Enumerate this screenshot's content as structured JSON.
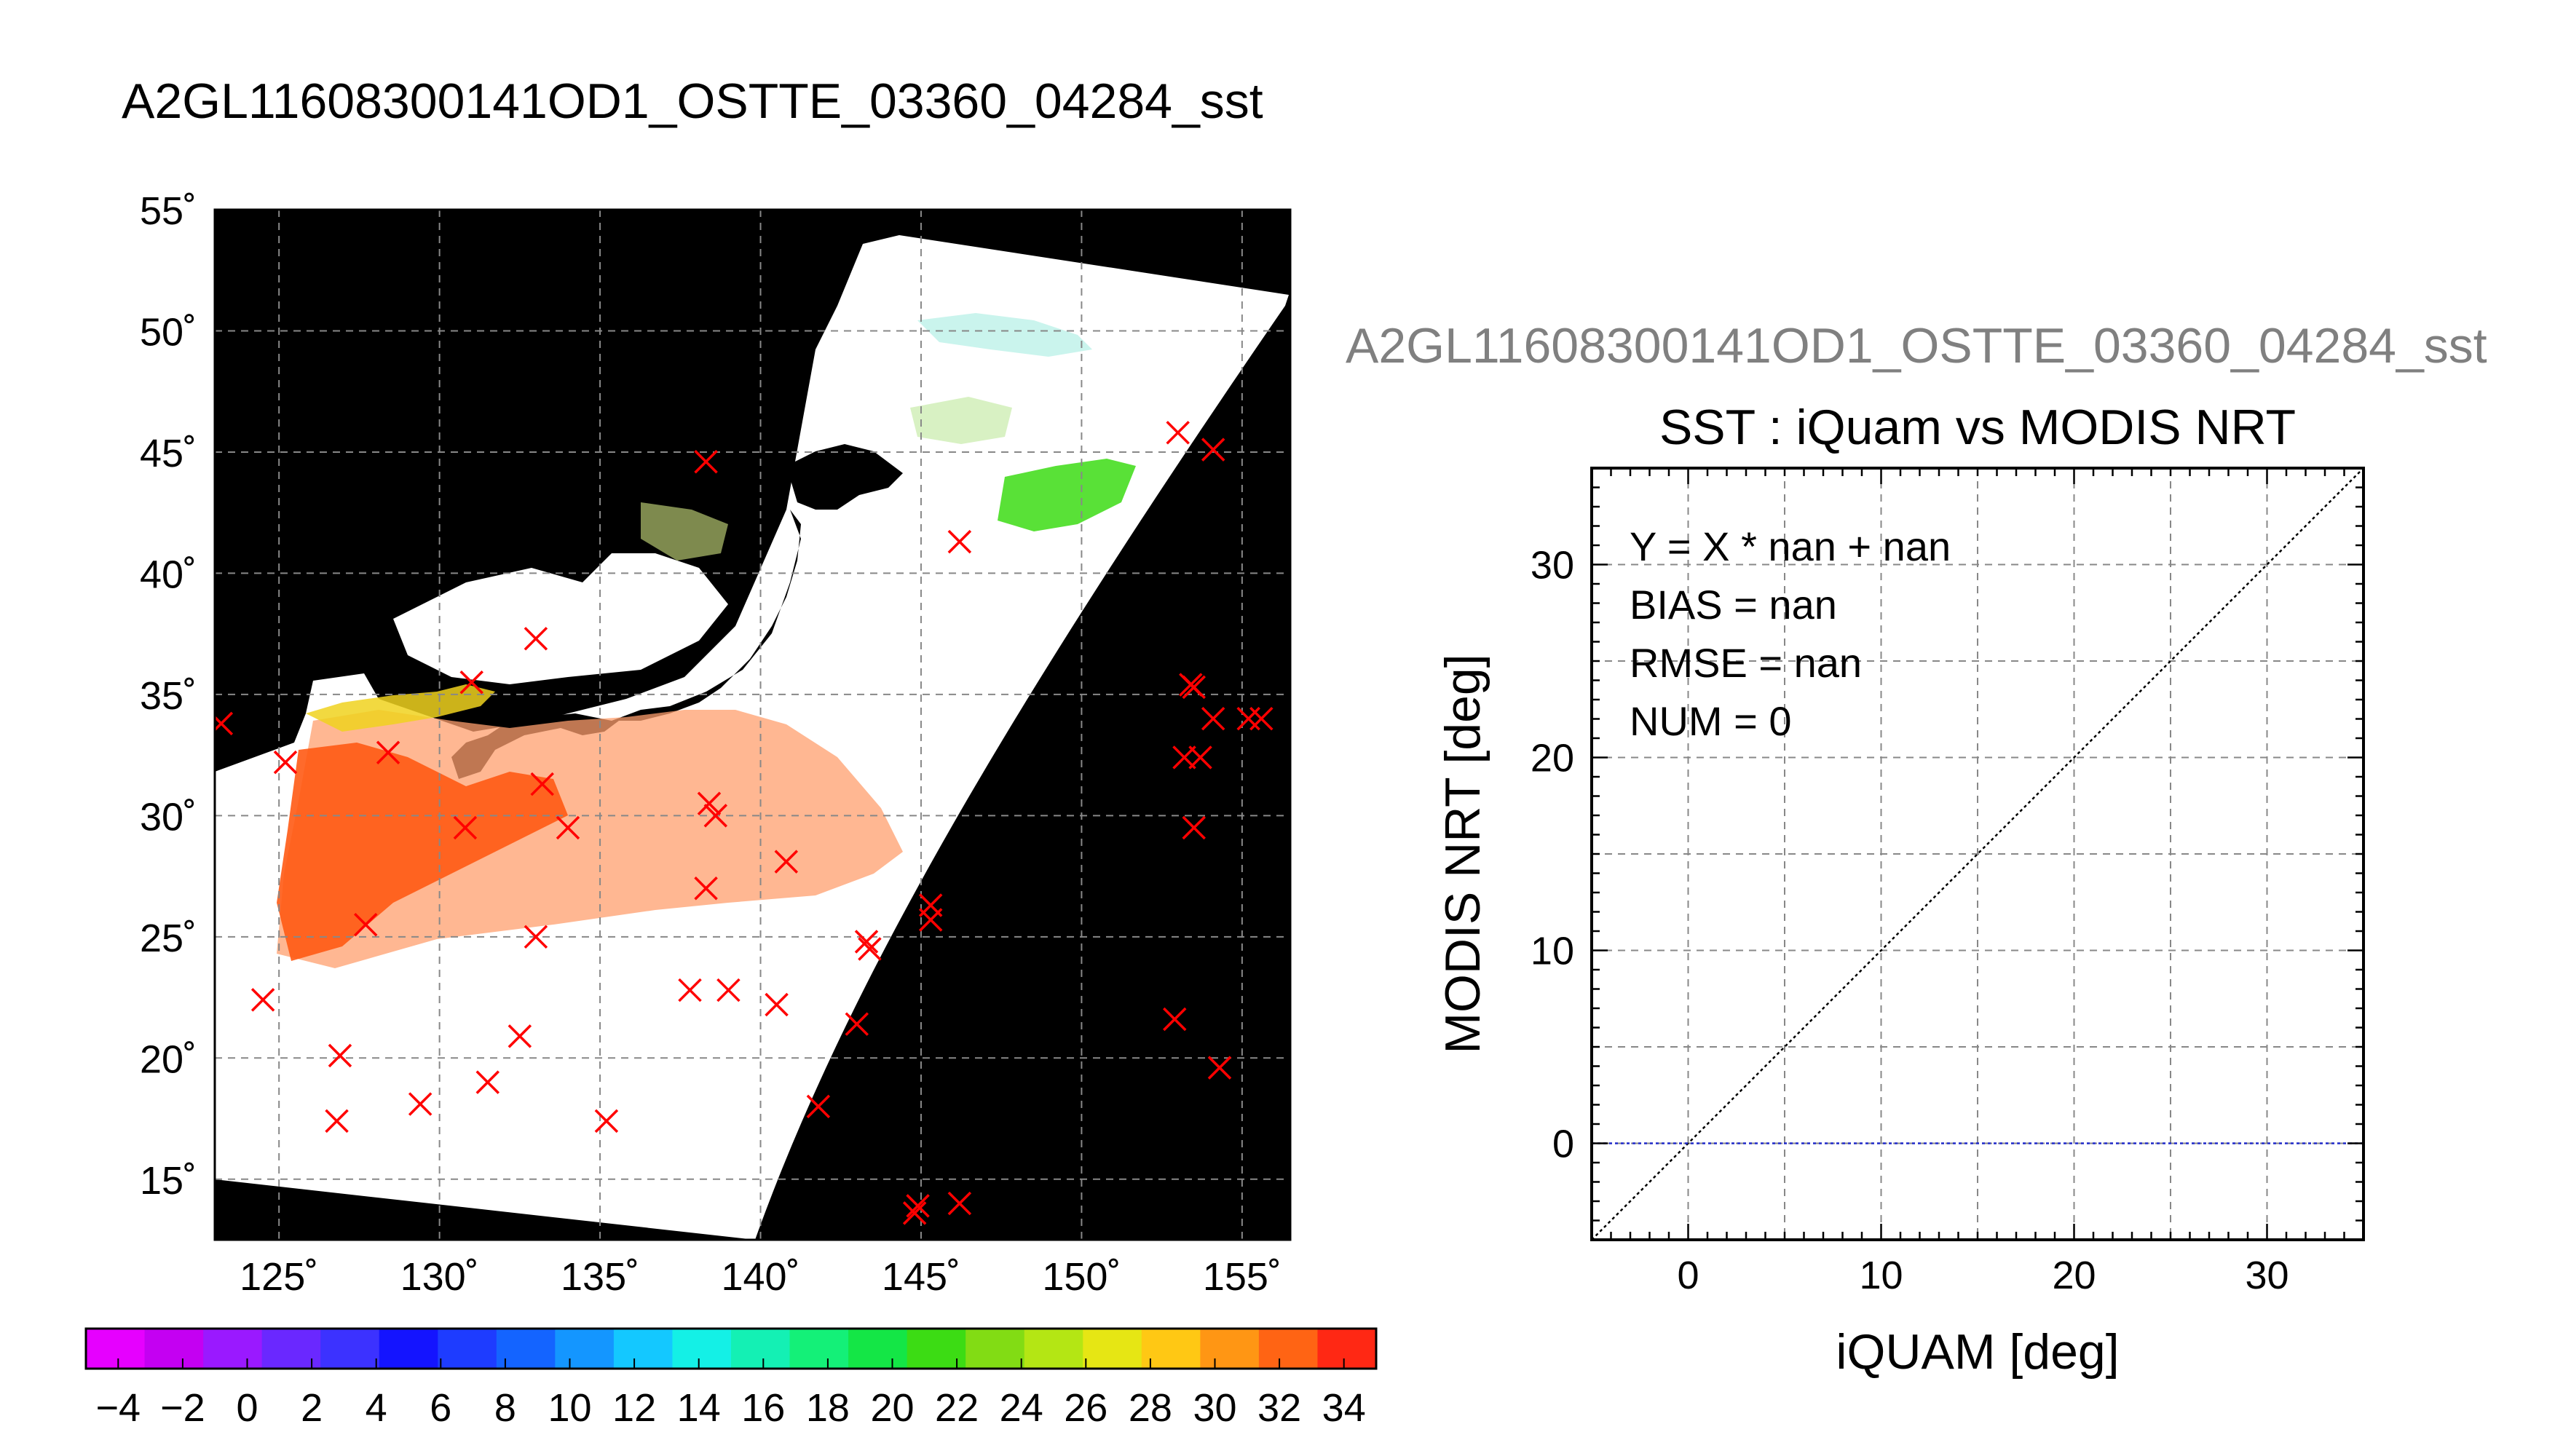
{
  "map_panel": {
    "title": "A2GL11608300141OD1_OSTTE_03360_04284_sst",
    "lat_labels": [
      "55˚",
      "50˚",
      "45˚",
      "40˚",
      "35˚",
      "30˚",
      "25˚",
      "20˚",
      "15˚"
    ],
    "lon_labels": [
      "125˚",
      "130˚",
      "135˚",
      "140˚",
      "145˚",
      "150˚",
      "155˚"
    ],
    "colorbar_labels": [
      "−4",
      "−2",
      "0",
      "2",
      "4",
      "6",
      "8",
      "10",
      "12",
      "14",
      "16",
      "18",
      "20",
      "22",
      "24",
      "26",
      "28",
      "30",
      "32",
      "34"
    ],
    "colorbar_colors": [
      "#e600ff",
      "#c400f2",
      "#9a19ff",
      "#6a28ff",
      "#3c32ff",
      "#1414ff",
      "#1e3cff",
      "#1464ff",
      "#1496ff",
      "#14c8ff",
      "#14f0e6",
      "#14f0b4",
      "#14f078",
      "#14e646",
      "#3cdc14",
      "#82dc14",
      "#b4e614",
      "#e6e614",
      "#ffc814",
      "#ff9614",
      "#ff6414",
      "#ff2814"
    ],
    "markers": [
      [
        123.2,
        33.8
      ],
      [
        125.2,
        32.2
      ],
      [
        124.5,
        22.4
      ],
      [
        126.9,
        20.1
      ],
      [
        126.8,
        17.4
      ],
      [
        127.7,
        25.5
      ],
      [
        128.4,
        32.6
      ],
      [
        129.4,
        18.1
      ],
      [
        131.0,
        35.5
      ],
      [
        130.8,
        29.5
      ],
      [
        131.5,
        19.0
      ],
      [
        132.5,
        20.9
      ],
      [
        133.0,
        37.3
      ],
      [
        133.2,
        31.3
      ],
      [
        133.0,
        25.0
      ],
      [
        134.0,
        29.5
      ],
      [
        135.2,
        17.4
      ],
      [
        137.8,
        22.8
      ],
      [
        138.3,
        44.6
      ],
      [
        138.3,
        27.0
      ],
      [
        138.4,
        30.5
      ],
      [
        138.6,
        30.0
      ],
      [
        139.0,
        22.8
      ],
      [
        140.5,
        22.2
      ],
      [
        140.8,
        28.1
      ],
      [
        141.8,
        18.0
      ],
      [
        143.0,
        21.4
      ],
      [
        143.3,
        24.8
      ],
      [
        143.4,
        24.5
      ],
      [
        144.8,
        13.6
      ],
      [
        144.9,
        13.9
      ],
      [
        145.3,
        26.3
      ],
      [
        145.3,
        25.7
      ],
      [
        146.2,
        41.3
      ],
      [
        146.2,
        14.0
      ],
      [
        152.9,
        21.6
      ],
      [
        153.0,
        45.8
      ],
      [
        153.2,
        32.4
      ],
      [
        153.4,
        35.4
      ],
      [
        153.5,
        35.3
      ],
      [
        153.5,
        29.5
      ],
      [
        153.7,
        32.4
      ],
      [
        154.1,
        45.1
      ],
      [
        154.1,
        34.0
      ],
      [
        154.3,
        19.6
      ],
      [
        155.2,
        34.0
      ],
      [
        155.6,
        34.0
      ]
    ]
  },
  "scatter_panel": {
    "title": "A2GL11608300141OD1_OSTTE_03360_04284_sst",
    "subtitle": "SST : iQuam vs MODIS NRT",
    "stats": [
      "Y = X * nan + nan",
      "BIAS = nan",
      "RMSE = nan",
      "NUM = 0"
    ],
    "xlabel": "iQUAM [deg]",
    "ylabel": "MODIS NRT [deg]",
    "x_ticks": [
      "0",
      "10",
      "20",
      "30"
    ],
    "y_ticks": [
      "0",
      "10",
      "20",
      "30"
    ]
  },
  "chart_data": [
    {
      "type": "scatter",
      "title": "A2GL11608300141OD1_OSTTE_03360_04284_sst",
      "xlabel": "",
      "ylabel": "",
      "xlim": [
        123,
        156.5
      ],
      "ylim": [
        12.5,
        55
      ],
      "x_ticks": [
        125,
        130,
        135,
        140,
        145,
        150,
        155
      ],
      "y_ticks": [
        15,
        20,
        25,
        30,
        35,
        40,
        45,
        50,
        55
      ],
      "grid": true,
      "colorbar": {
        "min": -5,
        "max": 35,
        "ticks": [
          -4,
          -2,
          0,
          2,
          4,
          6,
          8,
          10,
          12,
          14,
          16,
          18,
          20,
          22,
          24,
          26,
          28,
          30,
          32,
          34
        ]
      },
      "points_ref": "map_panel.markers"
    },
    {
      "type": "scatter",
      "title": "SST : iQuam vs MODIS NRT",
      "xlabel": "iQUAM [deg]",
      "ylabel": "MODIS NRT [deg]",
      "xlim": [
        -5,
        35
      ],
      "ylim": [
        -5,
        35
      ],
      "grid": true,
      "series": [
        {
          "name": "",
          "x": [
            -5,
            35
          ],
          "y": [
            -5,
            35
          ],
          "style": "dotted-black"
        },
        {
          "name": "",
          "x": [
            -5,
            35
          ],
          "y": [
            0,
            0
          ],
          "style": "dotted-blue"
        }
      ],
      "points": []
    }
  ]
}
